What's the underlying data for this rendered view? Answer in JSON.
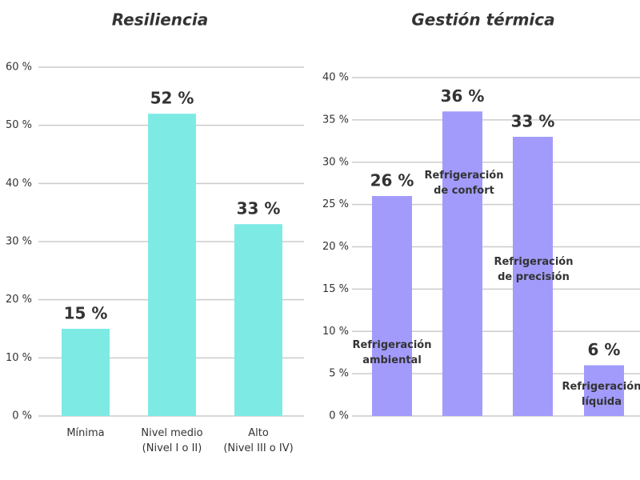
{
  "chart_data": [
    {
      "type": "bar",
      "title": "Resiliencia",
      "categories": [
        "Mínima",
        "Nivel medio\n(Nivel I o II)",
        "Alto\n(Nivel III o IV)"
      ],
      "values": [
        15,
        52,
        33
      ],
      "value_labels": [
        "15 %",
        "52 %",
        "33 %"
      ],
      "color": "#7eeae4",
      "ylim": [
        0,
        60
      ],
      "yticks": [
        {
          "value": 0,
          "label": "0 %"
        },
        {
          "value": 10,
          "label": "10 %"
        },
        {
          "value": 20,
          "label": "20 %"
        },
        {
          "value": 30,
          "label": "30 %"
        },
        {
          "value": 40,
          "label": "40 %"
        },
        {
          "value": 50,
          "label": "50 %"
        },
        {
          "value": 60,
          "label": "60 %"
        }
      ],
      "grid": true
    },
    {
      "type": "bar",
      "title": "Gestión térmica",
      "categories": [
        "Refrigeración\nambiental",
        "Refrigeración\nde confort",
        "Refrigeración\nde precisión",
        "Refrigeración\nlíquida"
      ],
      "values": [
        26,
        36,
        33,
        6
      ],
      "value_labels": [
        "26 %",
        "36 %",
        "33 %",
        "6 %"
      ],
      "color": "#a29bfc",
      "ylim": [
        0,
        40
      ],
      "yticks": [
        {
          "value": 0,
          "label": "0 %"
        },
        {
          "value": 5,
          "label": "5 %"
        },
        {
          "value": 10,
          "label": "10 %"
        },
        {
          "value": 15,
          "label": "15 %"
        },
        {
          "value": 20,
          "label": "20 %"
        },
        {
          "value": 25,
          "label": "25 %"
        },
        {
          "value": 30,
          "label": "30 %"
        },
        {
          "value": 35,
          "label": "35 %"
        },
        {
          "value": 40,
          "label": "40 %"
        }
      ],
      "grid": true
    }
  ]
}
